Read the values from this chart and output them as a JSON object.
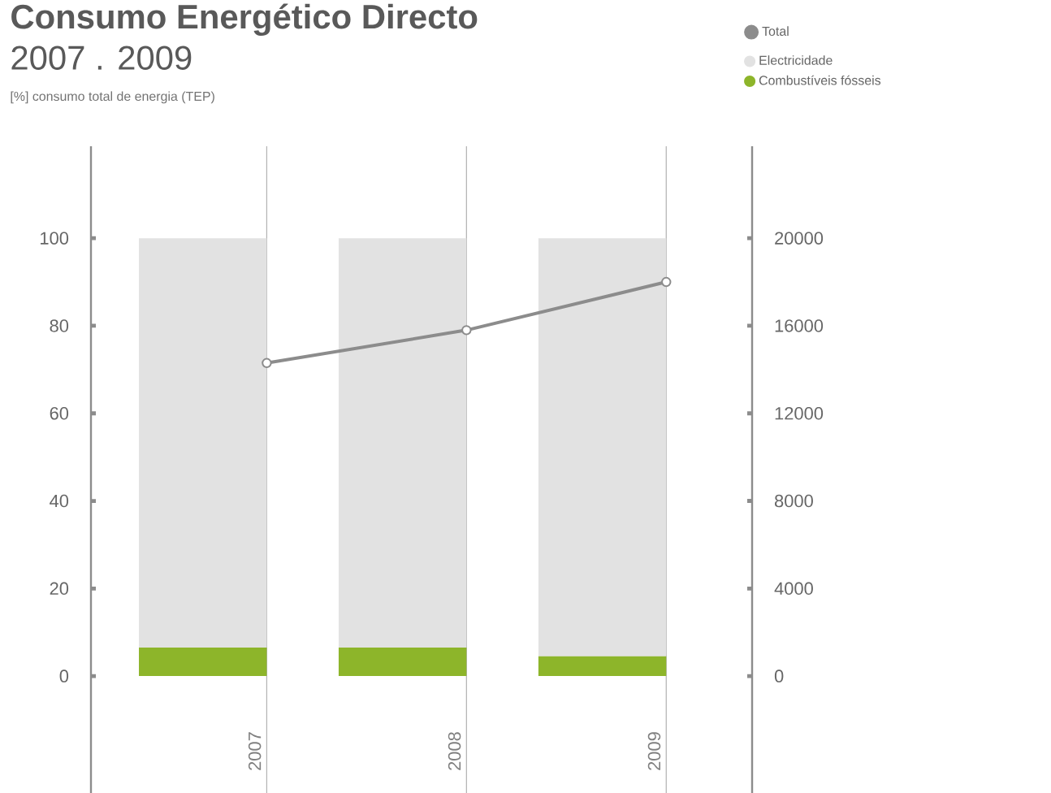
{
  "chart_data": {
    "type": "bar",
    "title": "Consumo Energético Directo",
    "subtitle": "2007 . 2009",
    "annotations": [
      "[%] consumo total de energia (TEP)"
    ],
    "categories": [
      "2007",
      "2008",
      "2009"
    ],
    "stacked": true,
    "series": [
      {
        "name": "Combustíveis fósseis",
        "color": "#8db52a",
        "values": [
          6.5,
          6.5,
          4.5
        ]
      },
      {
        "name": "Electricidade",
        "color": "#e2e2e2",
        "values": [
          93.5,
          93.5,
          95.5
        ]
      },
      {
        "name": "Total",
        "type": "line",
        "axis": "y2",
        "color": "#8c8c8c",
        "marker": "circle",
        "values": [
          14300,
          15800,
          18000
        ]
      }
    ],
    "ylim": [
      -26.7,
      121
    ],
    "yticks": [
      0,
      20,
      40,
      60,
      80,
      100
    ],
    "y2lim": [
      -5340,
      24200
    ],
    "y2ticks": [
      0,
      4000,
      8000,
      12000,
      16000,
      20000
    ],
    "grid": "x",
    "legend": "top right"
  }
}
